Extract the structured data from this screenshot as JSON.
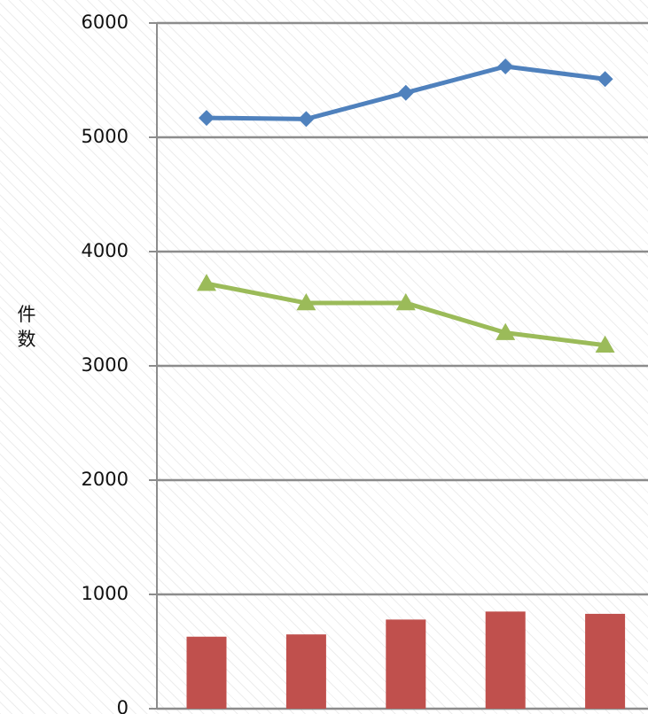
{
  "chart_data": {
    "type": "bar+line",
    "title": "",
    "xlabel": "",
    "ylabel": "件数",
    "ylim": [
      0,
      6000
    ],
    "yticks": [
      0,
      1000,
      2000,
      3000,
      4000,
      5000,
      6000
    ],
    "categories": [
      "",
      "",
      "",
      "",
      ""
    ],
    "grid": true,
    "legend": "none",
    "series": [
      {
        "type": "line",
        "marker": "diamond",
        "color": "#4f81bd",
        "values": [
          5170,
          5160,
          5390,
          5620,
          5510
        ]
      },
      {
        "type": "line",
        "marker": "triangle",
        "color": "#9bbb59",
        "values": [
          3720,
          3550,
          3550,
          3290,
          3180
        ]
      },
      {
        "type": "bar",
        "color": "#c0504d",
        "values": [
          630,
          650,
          780,
          850,
          830
        ]
      }
    ]
  }
}
